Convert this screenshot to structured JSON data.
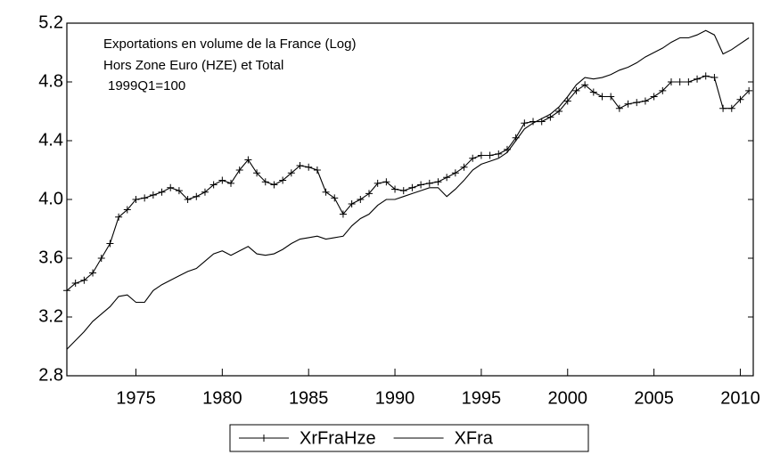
{
  "chart_data": {
    "type": "line",
    "annotations": [
      "Exportations en volume de la France (Log)",
      "Hors  Zone  Euro (HZE) et Total",
      "1999Q1=100"
    ],
    "x": [
      1971,
      1971.5,
      1972,
      1972.5,
      1973,
      1973.5,
      1974,
      1974.5,
      1975,
      1975.5,
      1976,
      1976.5,
      1977,
      1977.5,
      1978,
      1978.5,
      1979,
      1979.5,
      1980,
      1980.5,
      1981,
      1981.5,
      1982,
      1982.5,
      1983,
      1983.5,
      1984,
      1984.5,
      1985,
      1985.5,
      1986,
      1986.5,
      1987,
      1987.5,
      1988,
      1988.5,
      1989,
      1989.5,
      1990,
      1990.5,
      1991,
      1991.5,
      1992,
      1992.5,
      1993,
      1993.5,
      1994,
      1994.5,
      1995,
      1995.5,
      1996,
      1996.5,
      1997,
      1997.5,
      1998,
      1998.5,
      1999,
      1999.5,
      2000,
      2000.5,
      2001,
      2001.5,
      2002,
      2002.5,
      2003,
      2003.5,
      2004,
      2004.5,
      2005,
      2005.5,
      2006,
      2006.5,
      2007,
      2007.5,
      2008,
      2008.5,
      2009,
      2009.5,
      2010,
      2010.5
    ],
    "series": [
      {
        "name": "XrFraHze",
        "color": "#000000",
        "marker": "+",
        "values": [
          3.38,
          3.43,
          3.45,
          3.5,
          3.6,
          3.7,
          3.88,
          3.93,
          4.0,
          4.01,
          4.03,
          4.05,
          4.08,
          4.06,
          4.0,
          4.02,
          4.05,
          4.1,
          4.13,
          4.11,
          4.2,
          4.27,
          4.18,
          4.12,
          4.1,
          4.13,
          4.18,
          4.23,
          4.22,
          4.2,
          4.05,
          4.01,
          3.9,
          3.97,
          4.0,
          4.04,
          4.11,
          4.12,
          4.07,
          4.06,
          4.08,
          4.1,
          4.11,
          4.12,
          4.15,
          4.18,
          4.22,
          4.28,
          4.3,
          4.3,
          4.31,
          4.34,
          4.42,
          4.52,
          4.53,
          4.53,
          4.56,
          4.6,
          4.67,
          4.74,
          4.78,
          4.73,
          4.7,
          4.7,
          4.62,
          4.65,
          4.66,
          4.67,
          4.7,
          4.74,
          4.8,
          4.8,
          4.8,
          4.82,
          4.84,
          4.83,
          4.62,
          4.62,
          4.68,
          4.74
        ]
      },
      {
        "name": "XFra",
        "color": "#000000",
        "values": [
          2.98,
          3.04,
          3.1,
          3.17,
          3.22,
          3.27,
          3.34,
          3.35,
          3.3,
          3.3,
          3.38,
          3.42,
          3.45,
          3.48,
          3.51,
          3.53,
          3.58,
          3.63,
          3.65,
          3.62,
          3.65,
          3.68,
          3.63,
          3.62,
          3.63,
          3.66,
          3.7,
          3.73,
          3.74,
          3.75,
          3.73,
          3.74,
          3.75,
          3.82,
          3.87,
          3.9,
          3.96,
          4.0,
          4.0,
          4.02,
          4.04,
          4.06,
          4.08,
          4.08,
          4.02,
          4.07,
          4.13,
          4.2,
          4.24,
          4.26,
          4.28,
          4.32,
          4.4,
          4.48,
          4.52,
          4.55,
          4.58,
          4.63,
          4.7,
          4.78,
          4.83,
          4.82,
          4.83,
          4.85,
          4.88,
          4.9,
          4.93,
          4.97,
          5.0,
          5.03,
          5.07,
          5.1,
          5.1,
          5.12,
          5.15,
          5.12,
          4.99,
          5.02,
          5.06,
          5.1
        ]
      }
    ],
    "xlim": [
      1971,
      2010.75
    ],
    "xticks": [
      1975,
      1980,
      1985,
      1990,
      1995,
      2000,
      2005,
      2010
    ],
    "ylim": [
      2.8,
      5.2
    ],
    "yticks": [
      2.8,
      3.2,
      3.6,
      {
        "value": 4,
        "label": "4.0"
      },
      4.4,
      4.8,
      5.2
    ],
    "legend": "bottom"
  }
}
